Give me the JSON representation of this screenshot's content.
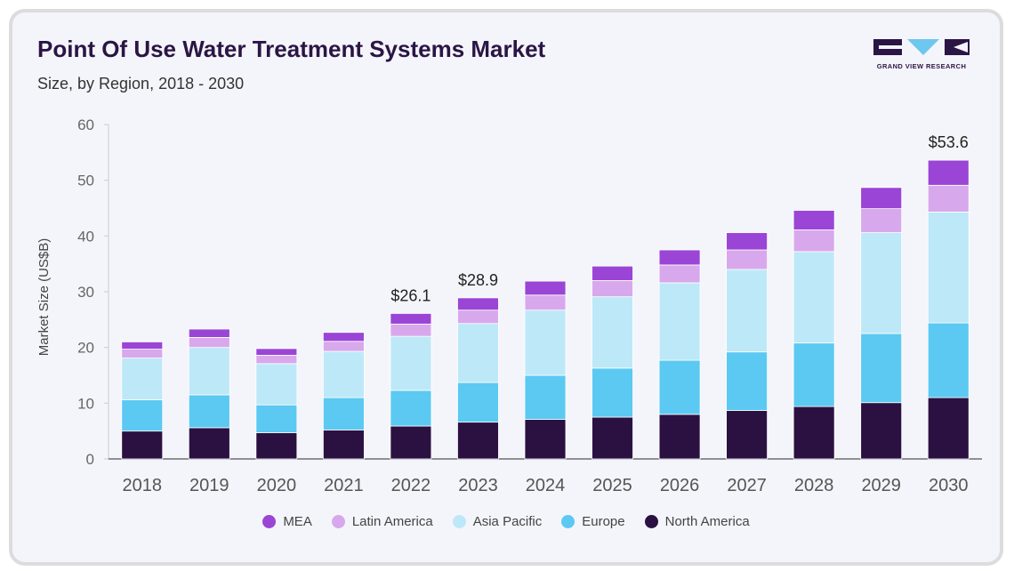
{
  "title": "Point Of Use Water Treatment Systems Market",
  "subtitle": "Size, by Region, 2018 - 2030",
  "logo": {
    "text": "GRAND VIEW RESEARCH",
    "colors": {
      "dark": "#2b1545",
      "accent": "#6ec7ee"
    }
  },
  "chart_data": {
    "type": "bar",
    "stacked": true,
    "categories": [
      "2018",
      "2019",
      "2020",
      "2021",
      "2022",
      "2023",
      "2024",
      "2025",
      "2026",
      "2027",
      "2028",
      "2029",
      "2030"
    ],
    "series": [
      {
        "name": "North America",
        "color": "#2b1142",
        "values": [
          5.0,
          5.6,
          4.7,
          5.2,
          5.9,
          6.6,
          7.1,
          7.5,
          8.0,
          8.7,
          9.4,
          10.1,
          11.0
        ]
      },
      {
        "name": "Europe",
        "color": "#5bc9f2",
        "values": [
          5.6,
          5.9,
          5.0,
          5.8,
          6.4,
          7.1,
          7.9,
          8.8,
          9.7,
          10.5,
          11.4,
          12.4,
          13.4
        ]
      },
      {
        "name": "Asia Pacific",
        "color": "#bde8f8",
        "values": [
          7.5,
          8.5,
          7.4,
          8.3,
          9.7,
          10.6,
          11.7,
          12.8,
          13.9,
          14.8,
          16.4,
          18.1,
          19.9
        ]
      },
      {
        "name": "Latin America",
        "color": "#d8a8ec",
        "values": [
          1.6,
          1.8,
          1.5,
          1.8,
          2.2,
          2.4,
          2.7,
          2.9,
          3.2,
          3.5,
          3.9,
          4.3,
          4.8
        ]
      },
      {
        "name": "MEA",
        "color": "#9a45d6",
        "values": [
          1.3,
          1.5,
          1.2,
          1.6,
          1.9,
          2.2,
          2.5,
          2.6,
          2.7,
          3.1,
          3.5,
          3.8,
          4.5
        ]
      }
    ],
    "legend_order": [
      "MEA",
      "Latin America",
      "Asia Pacific",
      "Europe",
      "North America"
    ],
    "annotations": [
      {
        "category": "2022",
        "label": "$26.1"
      },
      {
        "category": "2023",
        "label": "$28.9"
      },
      {
        "category": "2030",
        "label": "$53.6"
      }
    ],
    "ylabel": "Market Size (US$B)",
    "xlabel": "",
    "ylim": [
      0,
      60
    ],
    "yticks": [
      0,
      10,
      20,
      30,
      40,
      50,
      60
    ],
    "grid": false,
    "legend_position": "bottom"
  }
}
